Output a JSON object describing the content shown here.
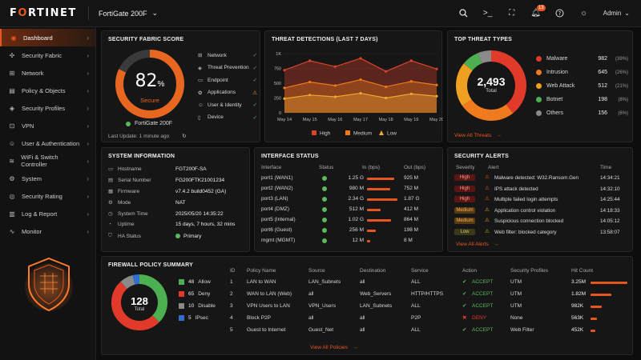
{
  "topbar": {
    "logo_left": "F",
    "logo_o": "O",
    "logo_right": "RTINET",
    "device": "FortiGate 200F",
    "notifications": "13",
    "user": "Admin"
  },
  "sidebar": {
    "items": [
      {
        "label": "Dashboard",
        "icon": "gauge-icon",
        "glyph": "◉",
        "active": true
      },
      {
        "label": "Security Fabric",
        "icon": "fabric-icon",
        "glyph": "✣"
      },
      {
        "label": "Network",
        "icon": "network-icon",
        "glyph": "⊞"
      },
      {
        "label": "Policy & Objects",
        "icon": "policy-icon",
        "glyph": "▤"
      },
      {
        "label": "Security Profiles",
        "icon": "shield-icon",
        "glyph": "◈"
      },
      {
        "label": "VPN",
        "icon": "lock-icon",
        "glyph": "⊡"
      },
      {
        "label": "User & Authentication",
        "icon": "user-icon",
        "glyph": "☺"
      },
      {
        "label": "WiFi & Switch Controller",
        "icon": "wifi-icon",
        "glyph": "≋"
      },
      {
        "label": "System",
        "icon": "gear-icon",
        "glyph": "⚙"
      },
      {
        "label": "Security Rating",
        "icon": "rating-icon",
        "glyph": "◎"
      },
      {
        "label": "Log & Report",
        "icon": "report-icon",
        "glyph": "▥"
      },
      {
        "label": "Monitor",
        "icon": "monitor-icon",
        "glyph": "∿"
      }
    ]
  },
  "score": {
    "title": "SECURITY FABRIC SCORE",
    "value": "82",
    "unit": "%",
    "fraction": 0.82,
    "status": "Secure",
    "device": "FortiGate 200F",
    "last_update": "Last Update: 1 minute ago",
    "components": [
      {
        "label": "Network",
        "status": "ok"
      },
      {
        "label": "Threat Prevention",
        "status": "ok"
      },
      {
        "label": "Endpoint",
        "status": "ok"
      },
      {
        "label": "Applications",
        "status": "warn"
      },
      {
        "label": "User & Identity",
        "status": "ok"
      },
      {
        "label": "Device",
        "status": "ok"
      }
    ]
  },
  "threats": {
    "title": "THREAT DETECTIONS (LAST 7 DAYS)",
    "chart_data": {
      "type": "area",
      "x": [
        "May 14",
        "May 15",
        "May 16",
        "May 17",
        "May 18",
        "May 19",
        "May 20"
      ],
      "yticks": [
        "0",
        "250",
        "500",
        "750",
        "1K"
      ],
      "ylim": [
        0,
        1000
      ],
      "series": [
        {
          "name": "High",
          "color": "#d9432c",
          "values": [
            720,
            880,
            780,
            920,
            700,
            880,
            740
          ]
        },
        {
          "name": "Medium",
          "color": "#f07a1e",
          "values": [
            420,
            520,
            460,
            560,
            440,
            530,
            470
          ]
        },
        {
          "name": "Low",
          "color": "#f0a830",
          "values": [
            240,
            300,
            270,
            330,
            250,
            320,
            280
          ]
        }
      ]
    }
  },
  "top_threats": {
    "title": "TOP THREAT TYPES",
    "total": "2,493",
    "total_label": "Total",
    "link": "View All Threats",
    "chart_data": {
      "type": "pie",
      "slices": [
        {
          "name": "Malware",
          "value": 982,
          "pct": "(39%)",
          "color": "#e23a2a"
        },
        {
          "name": "Intrusion",
          "value": 645,
          "pct": "(26%)",
          "color": "#f07a1e"
        },
        {
          "name": "Web Attack",
          "value": 512,
          "pct": "(21%)",
          "color": "#f0a020"
        },
        {
          "name": "Botnet",
          "value": 198,
          "pct": "(8%)",
          "color": "#4caf50"
        },
        {
          "name": "Others",
          "value": 156,
          "pct": "(6%)",
          "color": "#8a8a8a"
        }
      ]
    }
  },
  "sysinfo": {
    "title": "SYSTEM INFORMATION",
    "rows": [
      {
        "label": "Hostname",
        "value": "FGT200F-SA"
      },
      {
        "label": "Serial Number",
        "value": "FG200FTK21001234"
      },
      {
        "label": "Firmware",
        "value": "v7.4.2 build0452 (GA)"
      },
      {
        "label": "Mode",
        "value": "NAT"
      },
      {
        "label": "System Time",
        "value": "2025/05/20 14:35:22"
      },
      {
        "label": "Uptime",
        "value": "15 days, 7 hours, 32 mins"
      },
      {
        "label": "HA Status",
        "value": "Primary"
      }
    ]
  },
  "interfaces": {
    "title": "INTERFACE STATUS",
    "headers": [
      "Interface",
      "Status",
      "In (bps)",
      "Out (bps)"
    ],
    "rows": [
      {
        "name": "port1 (WAN1)",
        "in": "1.25 G",
        "out": "925 M",
        "in_frac": 0.9
      },
      {
        "name": "port2 (WAN2)",
        "in": "980 M",
        "out": "752 M",
        "in_frac": 0.75
      },
      {
        "name": "port3 (LAN)",
        "in": "2.34 G",
        "out": "1.87 G",
        "in_frac": 1.0
      },
      {
        "name": "port4 (DMZ)",
        "in": "512 M",
        "out": "412 M",
        "in_frac": 0.45
      },
      {
        "name": "port5 (Internal)",
        "in": "1.02 G",
        "out": "864 M",
        "in_frac": 0.8
      },
      {
        "name": "port6 (Guest)",
        "in": "256 M",
        "out": "198 M",
        "in_frac": 0.3
      },
      {
        "name": "mgmt (MGMT)",
        "in": "12 M",
        "out": "8 M",
        "in_frac": 0.1
      }
    ]
  },
  "alerts": {
    "title": "SECURITY ALERTS",
    "headers": [
      "Severity",
      "Alert",
      "Time"
    ],
    "link": "View All Alerts",
    "rows": [
      {
        "sev": "High",
        "cls": "sev-high",
        "text": "Malware detected: W32.Ransom.Gen",
        "time": "14:34:21"
      },
      {
        "sev": "High",
        "cls": "sev-high",
        "text": "IPS attack detected",
        "time": "14:32:10"
      },
      {
        "sev": "High",
        "cls": "sev-high",
        "text": "Multiple failed login attempts",
        "time": "14:25:44"
      },
      {
        "sev": "Medium",
        "cls": "sev-med",
        "text": "Application control violation",
        "time": "14:18:33"
      },
      {
        "sev": "Medium",
        "cls": "sev-med",
        "text": "Suspicious connection blocked",
        "time": "14:05:12"
      },
      {
        "sev": "Low",
        "cls": "sev-low",
        "text": "Web filter: blocked category",
        "time": "13:58:07"
      }
    ]
  },
  "policy": {
    "title": "FIREWALL POLICY SUMMARY",
    "total": "128",
    "total_label": "Total",
    "link": "View All Policies",
    "chart_data": {
      "type": "pie",
      "slices": [
        {
          "name": "Allow",
          "value": 48,
          "color": "#4caf50"
        },
        {
          "name": "Deny",
          "value": 65,
          "color": "#e23a2a"
        },
        {
          "name": "Disable",
          "value": 10,
          "color": "#8a8a8a"
        },
        {
          "name": "IPsec",
          "value": 5,
          "color": "#2f6fd0"
        }
      ]
    },
    "headers": [
      "ID",
      "Policy Name",
      "Source",
      "Destination",
      "Service",
      "Action",
      "Security Profiles",
      "Hit Count"
    ],
    "rows": [
      {
        "id": "1",
        "name": "LAN to WAN",
        "src": "LAN_Subnets",
        "dst": "all",
        "svc": "ALL",
        "action": "ACCEPT",
        "ok": true,
        "prof": "UTM",
        "hits": "3.25M",
        "frac": 1.0
      },
      {
        "id": "2",
        "name": "WAN to LAN (Web)",
        "src": "all",
        "dst": "Web_Servers",
        "svc": "HTTP/HTTPS",
        "action": "ACCEPT",
        "ok": true,
        "prof": "UTM",
        "hits": "1.82M",
        "frac": 0.56
      },
      {
        "id": "3",
        "name": "VPN Users to LAN",
        "src": "VPN_Users",
        "dst": "LAN_Subnets",
        "svc": "ALL",
        "action": "ACCEPT",
        "ok": true,
        "prof": "UTM",
        "hits": "982K",
        "frac": 0.3
      },
      {
        "id": "4",
        "name": "Block P2P",
        "src": "all",
        "dst": "all",
        "svc": "P2P",
        "action": "DENY",
        "ok": false,
        "prof": "None",
        "hits": "563K",
        "frac": 0.17
      },
      {
        "id": "5",
        "name": "Guest to Internet",
        "src": "Guest_Net",
        "dst": "all",
        "svc": "ALL",
        "action": "ACCEPT",
        "ok": true,
        "prof": "Web Filter",
        "hits": "452K",
        "frac": 0.14
      }
    ]
  }
}
